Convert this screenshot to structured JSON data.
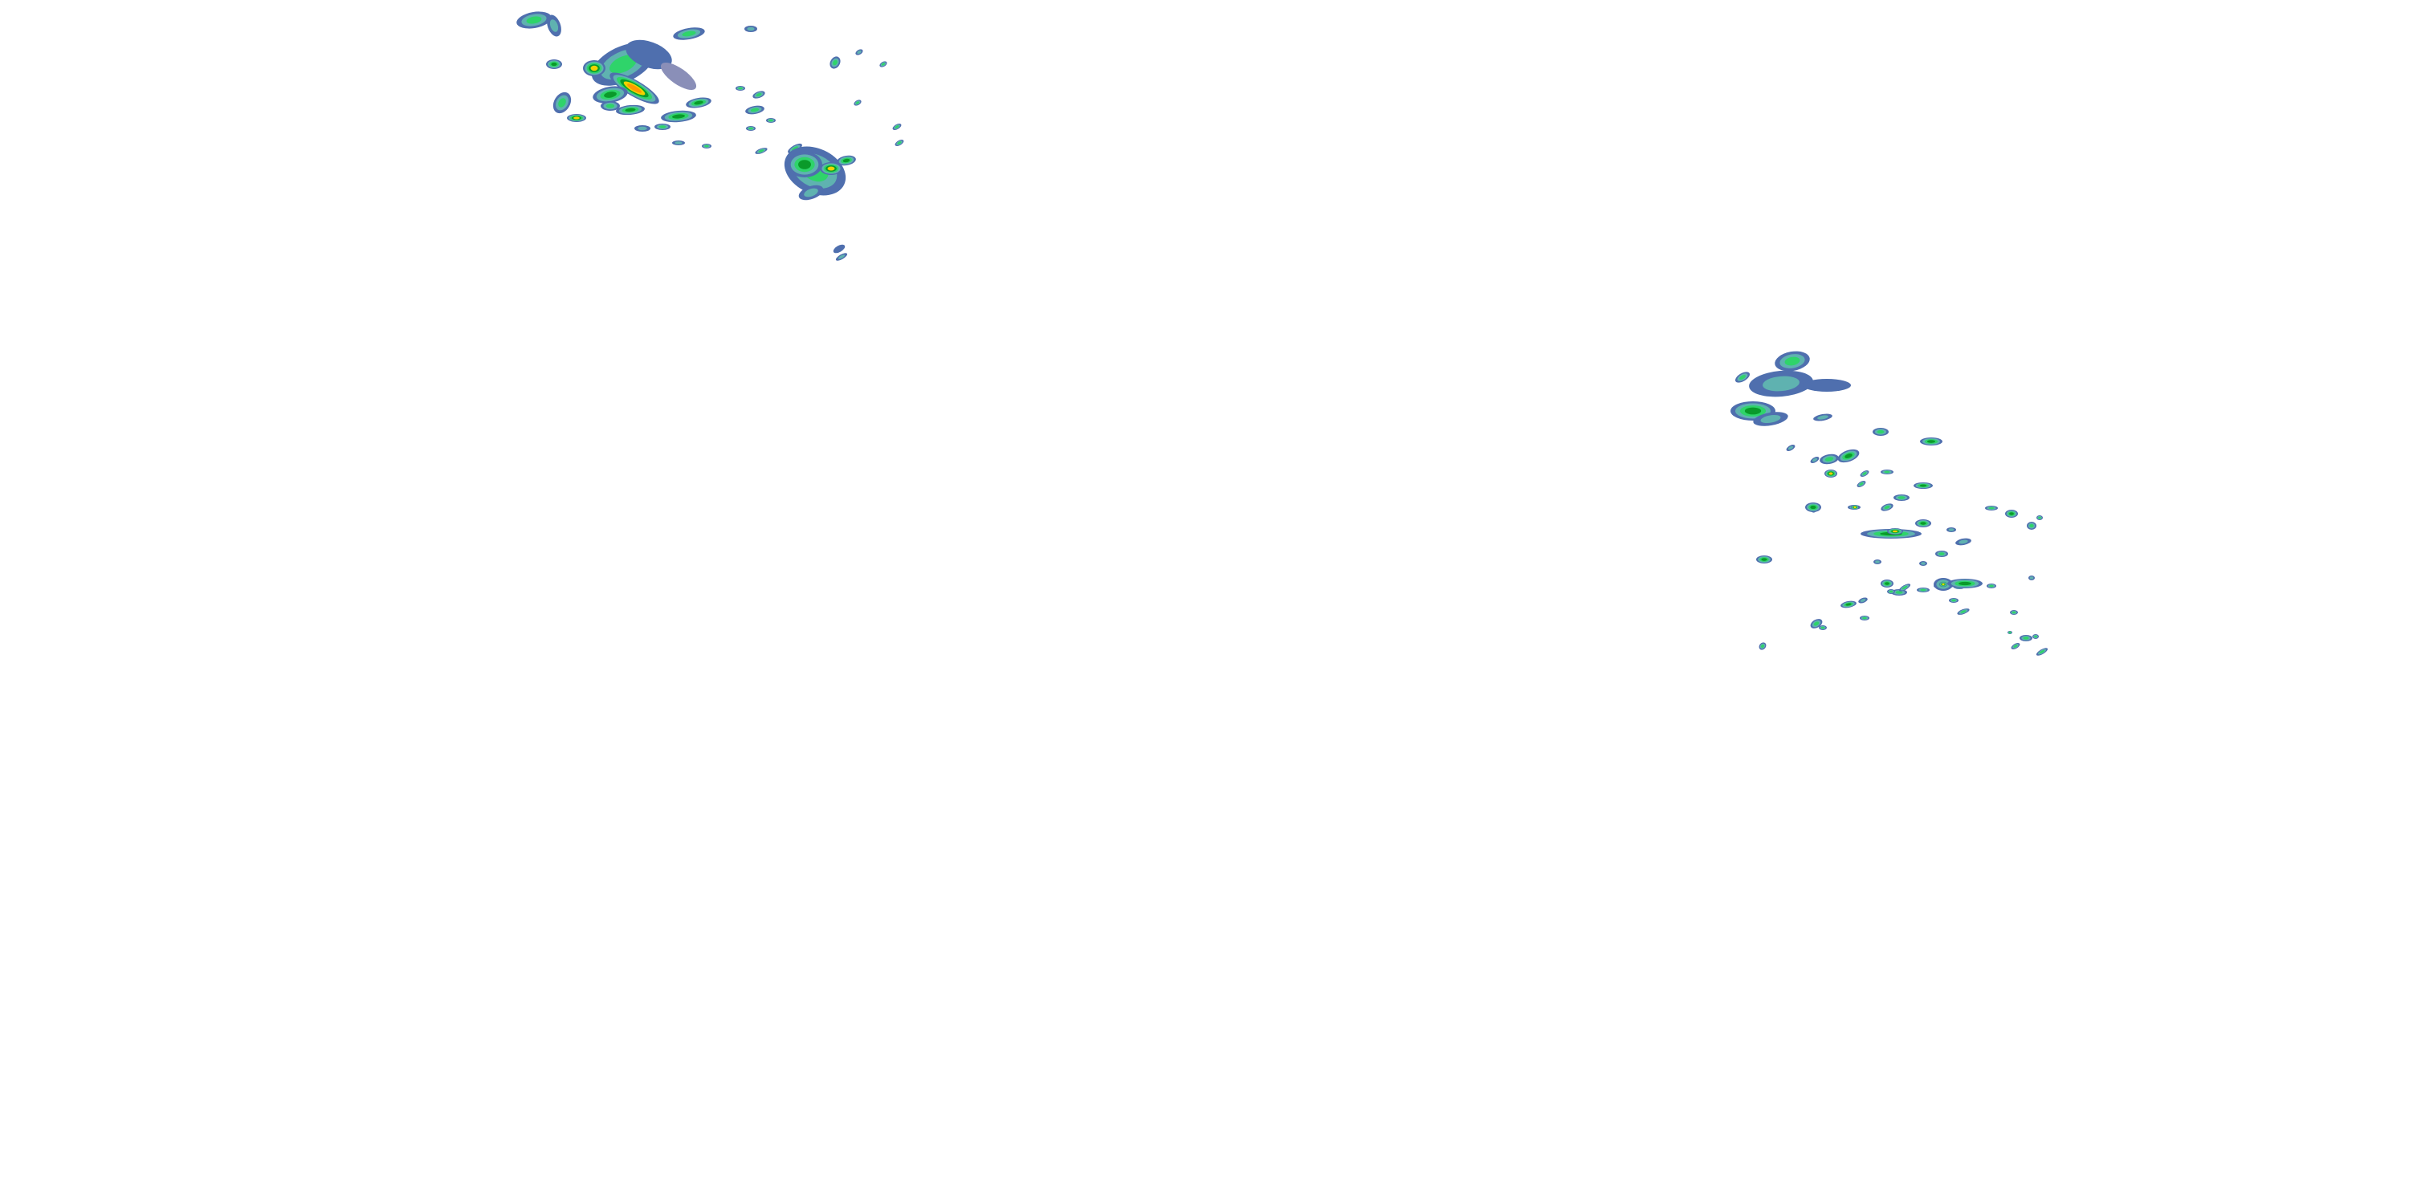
{
  "map": {
    "layer": "radar-precipitation-overlay",
    "background": "#ffffff",
    "palette": {
      "very_light": "#4f6fae",
      "light": "#5fb2b0",
      "moderate": "#2fd46a",
      "heavy": "#0a9a2a",
      "very_heavy": "#f2d200",
      "intense": "#ff9a00",
      "extreme": "#e8501e",
      "trace": "#8a8fb8"
    }
  }
}
